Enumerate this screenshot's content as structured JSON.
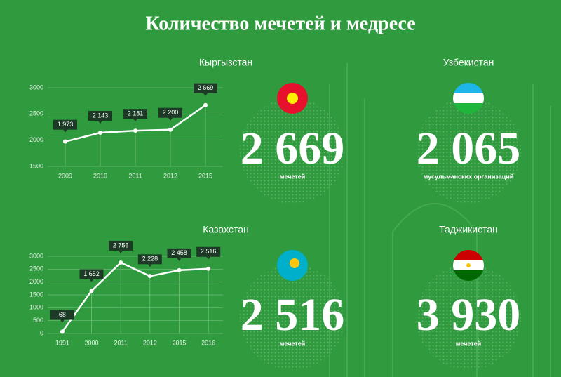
{
  "title": "Количество мечетей и медресе",
  "chart_data": [
    {
      "type": "line",
      "title": "Кыргызстан",
      "categories": [
        "2009",
        "2010",
        "2011",
        "2012",
        "2015"
      ],
      "values": [
        1973,
        2143,
        2181,
        2200,
        2669
      ],
      "value_labels": [
        "1 973",
        "2 143",
        "2 181",
        "2 200",
        "2 669"
      ],
      "ylim": [
        1500,
        3000
      ],
      "yticks": [
        1500,
        2000,
        2500,
        3000
      ],
      "grid": true,
      "color": "#ffffff"
    },
    {
      "type": "line",
      "title": "Казахстан",
      "categories": [
        "1991",
        "2000",
        "2011",
        "2012",
        "2015",
        "2016"
      ],
      "values": [
        68,
        1652,
        2756,
        2228,
        2458,
        2516
      ],
      "value_labels": [
        "68",
        "1 652",
        "2 756",
        "2 228",
        "2 458",
        "2 516"
      ],
      "ylim": [
        0,
        3000
      ],
      "yticks": [
        0,
        500,
        1000,
        1500,
        2000,
        2500,
        3000
      ],
      "grid": true,
      "color": "#ffffff"
    }
  ],
  "stats": [
    {
      "value": "2 669",
      "unit": "мечетей"
    },
    {
      "country": "Узбекистан",
      "value": "2 065",
      "unit": "мусульманских организаций"
    },
    {
      "value": "2 516",
      "unit": "мечетей"
    },
    {
      "country": "Таджикистан",
      "value": "3 930",
      "unit": "мечетей"
    }
  ]
}
